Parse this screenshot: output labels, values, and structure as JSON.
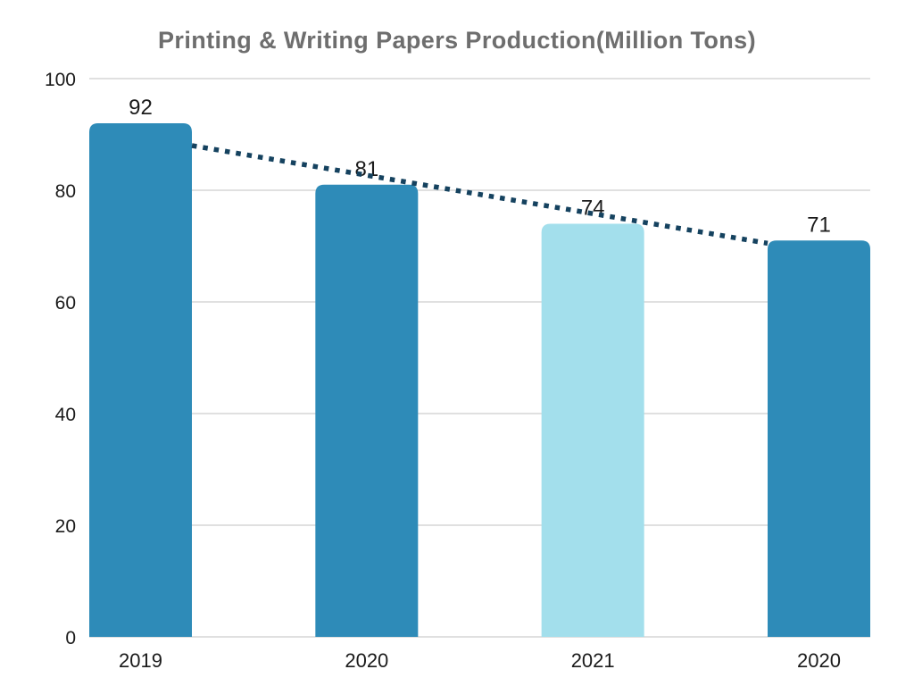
{
  "chart_data": {
    "type": "bar",
    "title": "Printing & Writing Papers Production(Million Tons)",
    "categories": [
      "2019",
      "2020",
      "2021",
      "2020"
    ],
    "values": [
      92,
      81,
      74,
      71
    ],
    "value_labels": [
      "92",
      "81",
      "74",
      "71"
    ],
    "xlabel": "",
    "ylabel": "",
    "ylim": [
      0,
      100
    ],
    "yticks": [
      0,
      20,
      40,
      60,
      80,
      100
    ],
    "grid": true,
    "legend": false,
    "highlight_index": 2,
    "trendline": {
      "style": "dotted",
      "start_value": 88,
      "end_value": 70.5,
      "color": "#15425F"
    },
    "colors": {
      "bar_default": "#2E8BB8",
      "bar_highlight": "#A3DFEC",
      "title": "#6E6E6E",
      "axis_label": "#1B1B1B",
      "value_label": "#1B1B1B",
      "gridline": "#E0E0E0",
      "background": "#FFFFFF"
    }
  }
}
